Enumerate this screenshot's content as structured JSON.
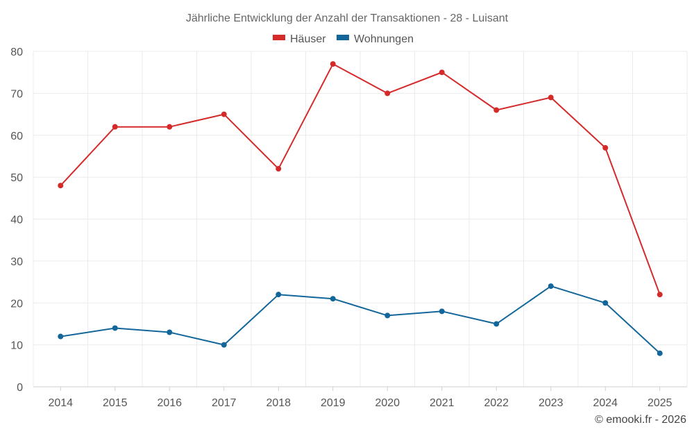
{
  "chart_data": {
    "type": "line",
    "title": "Jährliche Entwicklung der Anzahl der Transaktionen - 28 - Luisant",
    "categories": [
      "2014",
      "2015",
      "2016",
      "2017",
      "2018",
      "2019",
      "2020",
      "2021",
      "2022",
      "2023",
      "2024",
      "2025"
    ],
    "series": [
      {
        "name": "Häuser",
        "color": "#d42a2a",
        "values": [
          48,
          62,
          62,
          65,
          52,
          77,
          70,
          75,
          66,
          69,
          57,
          22
        ]
      },
      {
        "name": "Wohnungen",
        "color": "#136699",
        "values": [
          12,
          14,
          13,
          10,
          22,
          21,
          17,
          18,
          15,
          24,
          20,
          8
        ]
      }
    ],
    "ylim": [
      0,
      80
    ],
    "yticks": [
      "0",
      "10",
      "20",
      "30",
      "40",
      "50",
      "60",
      "70",
      "80"
    ],
    "xlabel": "",
    "ylabel": "",
    "grid": true,
    "legend": "top-center"
  },
  "credit": "© emooki.fr - 2026"
}
